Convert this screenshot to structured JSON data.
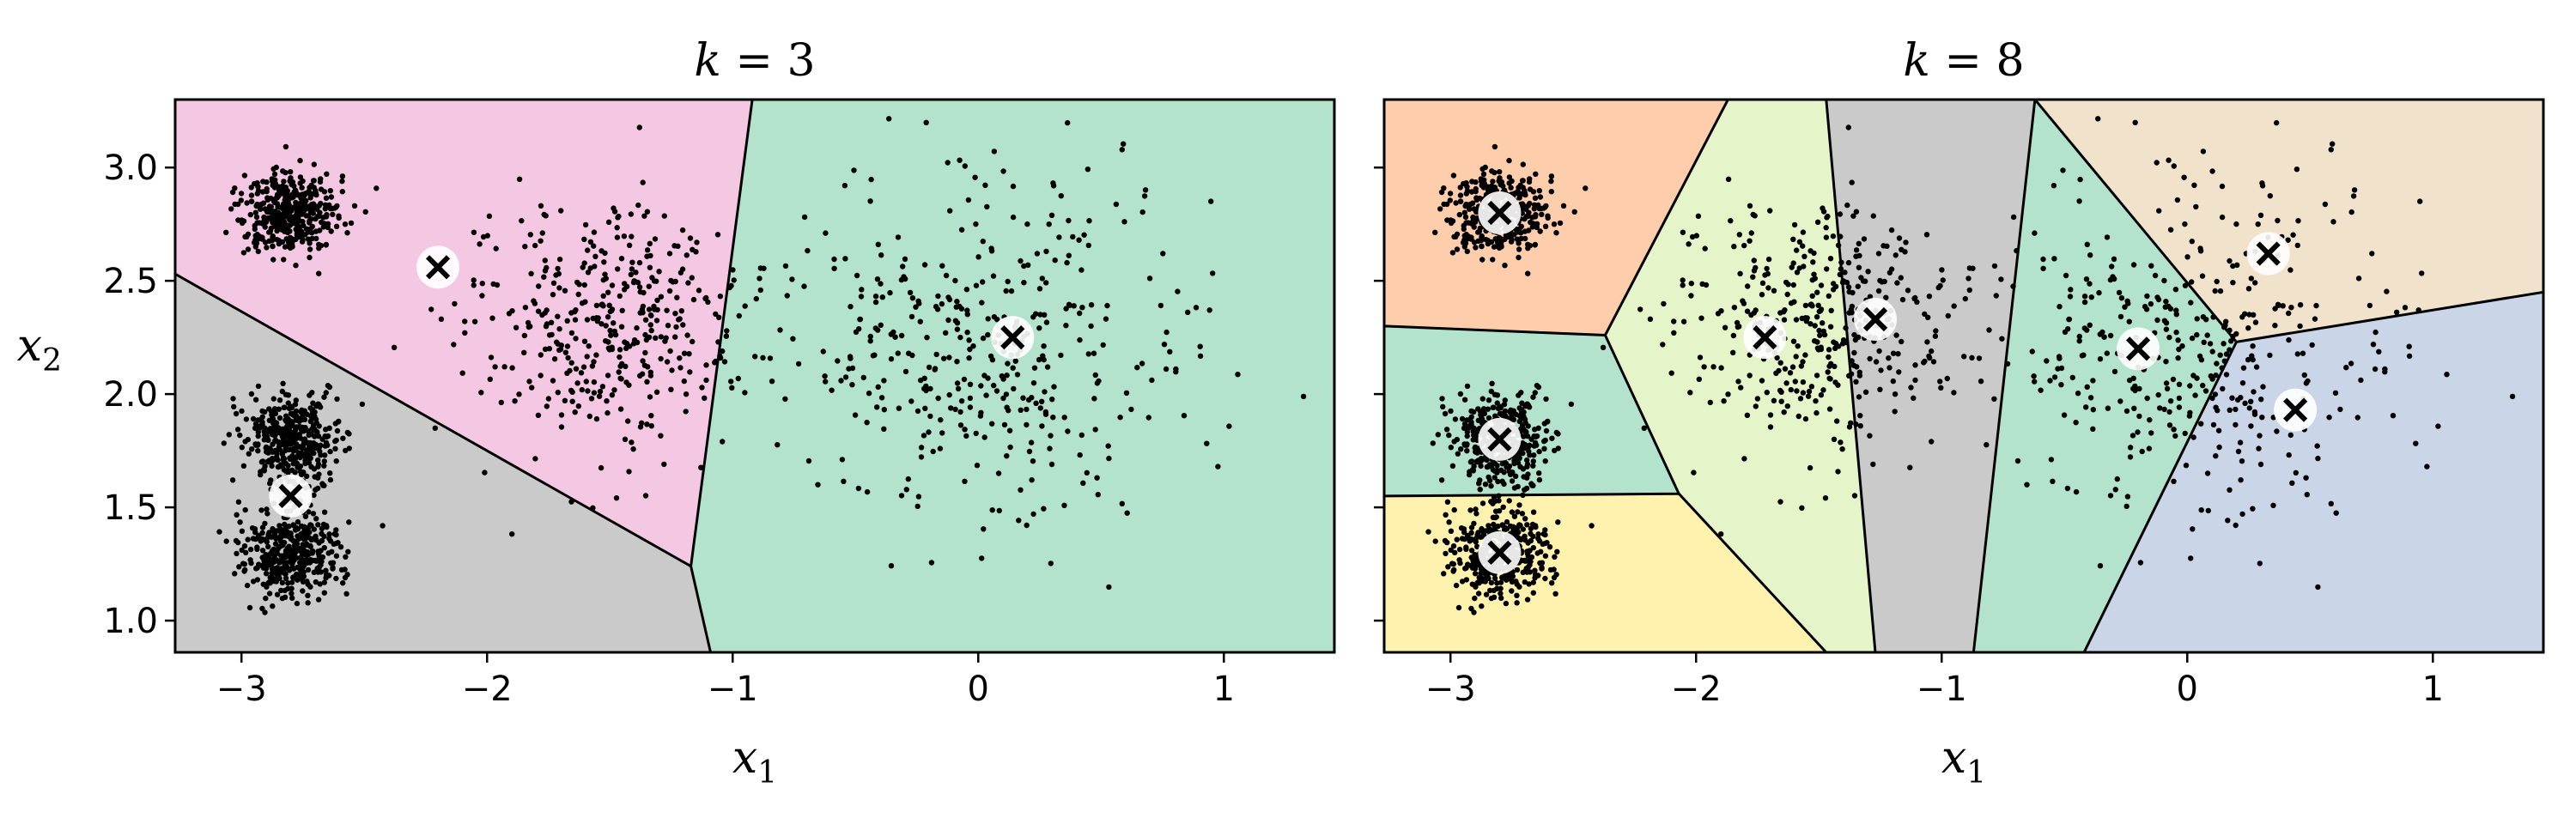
{
  "chart_data": [
    {
      "type": "scatter",
      "title_var": "k",
      "title_value": "3",
      "xlabel_var": "x",
      "xlabel_sub": "1",
      "ylabel_var": "x",
      "ylabel_sub": "2",
      "xlim": [
        -3.27,
        1.45
      ],
      "ylim": [
        0.86,
        3.3
      ],
      "xticks": [
        -3,
        -2,
        -1,
        0,
        1
      ],
      "yticks": [
        1.0,
        1.5,
        2.0,
        2.5,
        3.0
      ],
      "xtick_labels": [
        "−3",
        "−2",
        "−1",
        "0",
        "1"
      ],
      "ytick_labels": [
        "1.0",
        "1.5",
        "2.0",
        "2.5",
        "3.0"
      ],
      "show_yticklabels": true,
      "regions": [
        {
          "color": "#f4c7e3",
          "polygon": [
            [
              -3.27,
              3.3
            ],
            [
              -0.92,
              3.3
            ],
            [
              -1.17,
              1.24
            ],
            [
              -3.27,
              2.53
            ]
          ]
        },
        {
          "color": "#cacaca",
          "polygon": [
            [
              -3.27,
              2.53
            ],
            [
              -1.17,
              1.24
            ],
            [
              -1.09,
              0.86
            ],
            [
              -3.27,
              0.86
            ]
          ]
        },
        {
          "color": "#b3e2cd",
          "polygon": [
            [
              -0.92,
              3.3
            ],
            [
              1.45,
              3.3
            ],
            [
              1.45,
              0.86
            ],
            [
              -1.09,
              0.86
            ],
            [
              -1.17,
              1.24
            ]
          ]
        }
      ],
      "boundaries": [
        [
          [
            -3.27,
            2.53
          ],
          [
            -1.17,
            1.24
          ]
        ],
        [
          [
            -0.92,
            3.3
          ],
          [
            -1.17,
            1.24
          ],
          [
            -1.09,
            0.86
          ]
        ]
      ],
      "centroids": [
        [
          -2.2,
          2.56
        ],
        [
          -2.8,
          1.55
        ],
        [
          0.14,
          2.25
        ]
      ],
      "clusters": [
        {
          "cx": -2.8,
          "cy": 2.8,
          "sx": 0.1,
          "sy": 0.1,
          "n": 400
        },
        {
          "cx": -2.8,
          "cy": 1.8,
          "sx": 0.1,
          "sy": 0.1,
          "n": 400
        },
        {
          "cx": -2.8,
          "cy": 1.3,
          "sx": 0.1,
          "sy": 0.1,
          "n": 400
        },
        {
          "cx": -1.5,
          "cy": 2.3,
          "sx": 0.28,
          "sy": 0.27,
          "n": 400
        },
        {
          "cx": 0.0,
          "cy": 2.2,
          "sx": 0.42,
          "sy": 0.38,
          "n": 400
        }
      ]
    },
    {
      "type": "scatter",
      "title_var": "k",
      "title_value": "8",
      "xlabel_var": "x",
      "xlabel_sub": "1",
      "ylabel_var": "",
      "ylabel_sub": "",
      "xlim": [
        -3.27,
        1.45
      ],
      "ylim": [
        0.86,
        3.3
      ],
      "xticks": [
        -3,
        -2,
        -1,
        0,
        1
      ],
      "yticks": [
        1.0,
        1.5,
        2.0,
        2.5,
        3.0
      ],
      "xtick_labels": [
        "−3",
        "−2",
        "−1",
        "0",
        "1"
      ],
      "ytick_labels": [
        "",
        "",
        "",
        "",
        ""
      ],
      "show_yticklabels": false,
      "regions": [
        {
          "color": "#fdcdac",
          "polygon": [
            [
              -3.27,
              3.3
            ],
            [
              -1.87,
              3.3
            ],
            [
              -2.37,
              2.26
            ],
            [
              -3.27,
              2.3
            ]
          ]
        },
        {
          "color": "#b3e2cd",
          "polygon": [
            [
              -3.27,
              2.3
            ],
            [
              -2.37,
              2.26
            ],
            [
              -2.07,
              1.56
            ],
            [
              -3.27,
              1.55
            ]
          ]
        },
        {
          "color": "#fff2ae",
          "polygon": [
            [
              -3.27,
              1.55
            ],
            [
              -2.07,
              1.56
            ],
            [
              -1.47,
              0.86
            ],
            [
              -3.27,
              0.86
            ]
          ]
        },
        {
          "color": "#e6f5c9",
          "polygon": [
            [
              -1.87,
              3.3
            ],
            [
              -1.47,
              3.3
            ],
            [
              -1.27,
              0.86
            ],
            [
              -1.47,
              0.86
            ],
            [
              -2.07,
              1.56
            ],
            [
              -2.37,
              2.26
            ]
          ]
        },
        {
          "color": "#cacaca",
          "polygon": [
            [
              -1.47,
              3.3
            ],
            [
              -0.62,
              3.3
            ],
            [
              -0.87,
              0.86
            ],
            [
              -1.27,
              0.86
            ]
          ]
        },
        {
          "color": "#b3e2cd",
          "polygon": [
            [
              -0.62,
              3.3
            ],
            [
              0.2,
              2.23
            ],
            [
              -0.42,
              0.86
            ],
            [
              -0.87,
              0.86
            ]
          ]
        },
        {
          "color": "#f1e2cc",
          "polygon": [
            [
              -0.62,
              3.3
            ],
            [
              1.45,
              3.3
            ],
            [
              1.45,
              2.45
            ],
            [
              0.2,
              2.23
            ]
          ]
        },
        {
          "color": "#cbd5e8",
          "polygon": [
            [
              0.2,
              2.23
            ],
            [
              1.45,
              2.45
            ],
            [
              1.45,
              0.86
            ],
            [
              -0.42,
              0.86
            ]
          ]
        }
      ],
      "boundaries": [
        [
          [
            -1.87,
            3.3
          ],
          [
            -2.37,
            2.26
          ],
          [
            -3.27,
            2.3
          ]
        ],
        [
          [
            -2.37,
            2.26
          ],
          [
            -2.07,
            1.56
          ],
          [
            -3.27,
            1.55
          ]
        ],
        [
          [
            -2.07,
            1.56
          ],
          [
            -1.47,
            0.86
          ]
        ],
        [
          [
            -1.47,
            3.3
          ],
          [
            -1.27,
            0.86
          ]
        ],
        [
          [
            -0.62,
            3.3
          ],
          [
            -0.87,
            0.86
          ]
        ],
        [
          [
            -0.62,
            3.3
          ],
          [
            0.2,
            2.23
          ],
          [
            -0.42,
            0.86
          ]
        ],
        [
          [
            0.2,
            2.23
          ],
          [
            1.45,
            2.45
          ]
        ]
      ],
      "centroids": [
        [
          -2.8,
          2.8
        ],
        [
          -2.8,
          1.8
        ],
        [
          -2.8,
          1.3
        ],
        [
          -1.72,
          2.25
        ],
        [
          -1.27,
          2.33
        ],
        [
          -0.2,
          2.2
        ],
        [
          0.33,
          2.62
        ],
        [
          0.44,
          1.93
        ]
      ],
      "clusters": [
        {
          "cx": -2.8,
          "cy": 2.8,
          "sx": 0.1,
          "sy": 0.1,
          "n": 400
        },
        {
          "cx": -2.8,
          "cy": 1.8,
          "sx": 0.1,
          "sy": 0.1,
          "n": 400
        },
        {
          "cx": -2.8,
          "cy": 1.3,
          "sx": 0.1,
          "sy": 0.1,
          "n": 400
        },
        {
          "cx": -1.5,
          "cy": 2.3,
          "sx": 0.28,
          "sy": 0.27,
          "n": 400
        },
        {
          "cx": 0.0,
          "cy": 2.2,
          "sx": 0.42,
          "sy": 0.38,
          "n": 400
        }
      ]
    }
  ]
}
